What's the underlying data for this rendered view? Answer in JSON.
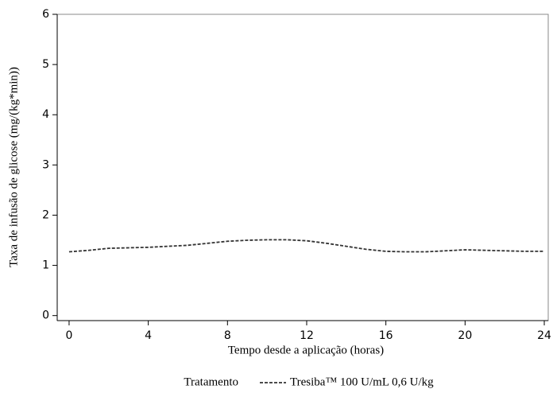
{
  "chart_data": {
    "type": "line",
    "x_label": "Tempo desde a aplicação (horas)",
    "y_label": "Taxa de infusão de glicose (mg/(kg*min))",
    "legend_title": "Tratamento",
    "x": [
      0,
      1,
      2,
      3,
      4,
      5,
      6,
      7,
      8,
      9,
      10,
      11,
      12,
      13,
      14,
      15,
      16,
      17,
      18,
      19,
      20,
      21,
      22,
      23,
      24
    ],
    "series": [
      {
        "name": "Tresiba™ 100 U/mL 0,6 U/kg",
        "color": "#333333",
        "dashed": true,
        "values": [
          1.27,
          1.3,
          1.34,
          1.35,
          1.36,
          1.38,
          1.4,
          1.44,
          1.48,
          1.5,
          1.51,
          1.51,
          1.49,
          1.44,
          1.38,
          1.32,
          1.28,
          1.27,
          1.27,
          1.29,
          1.31,
          1.3,
          1.29,
          1.28,
          1.28
        ]
      }
    ],
    "xlim": [
      -0.6,
      24.2
    ],
    "ylim": [
      -0.1,
      6
    ],
    "xticks": [
      0,
      4,
      8,
      12,
      16,
      20,
      24
    ],
    "yticks": [
      0,
      1,
      2,
      3,
      4,
      5,
      6
    ]
  }
}
